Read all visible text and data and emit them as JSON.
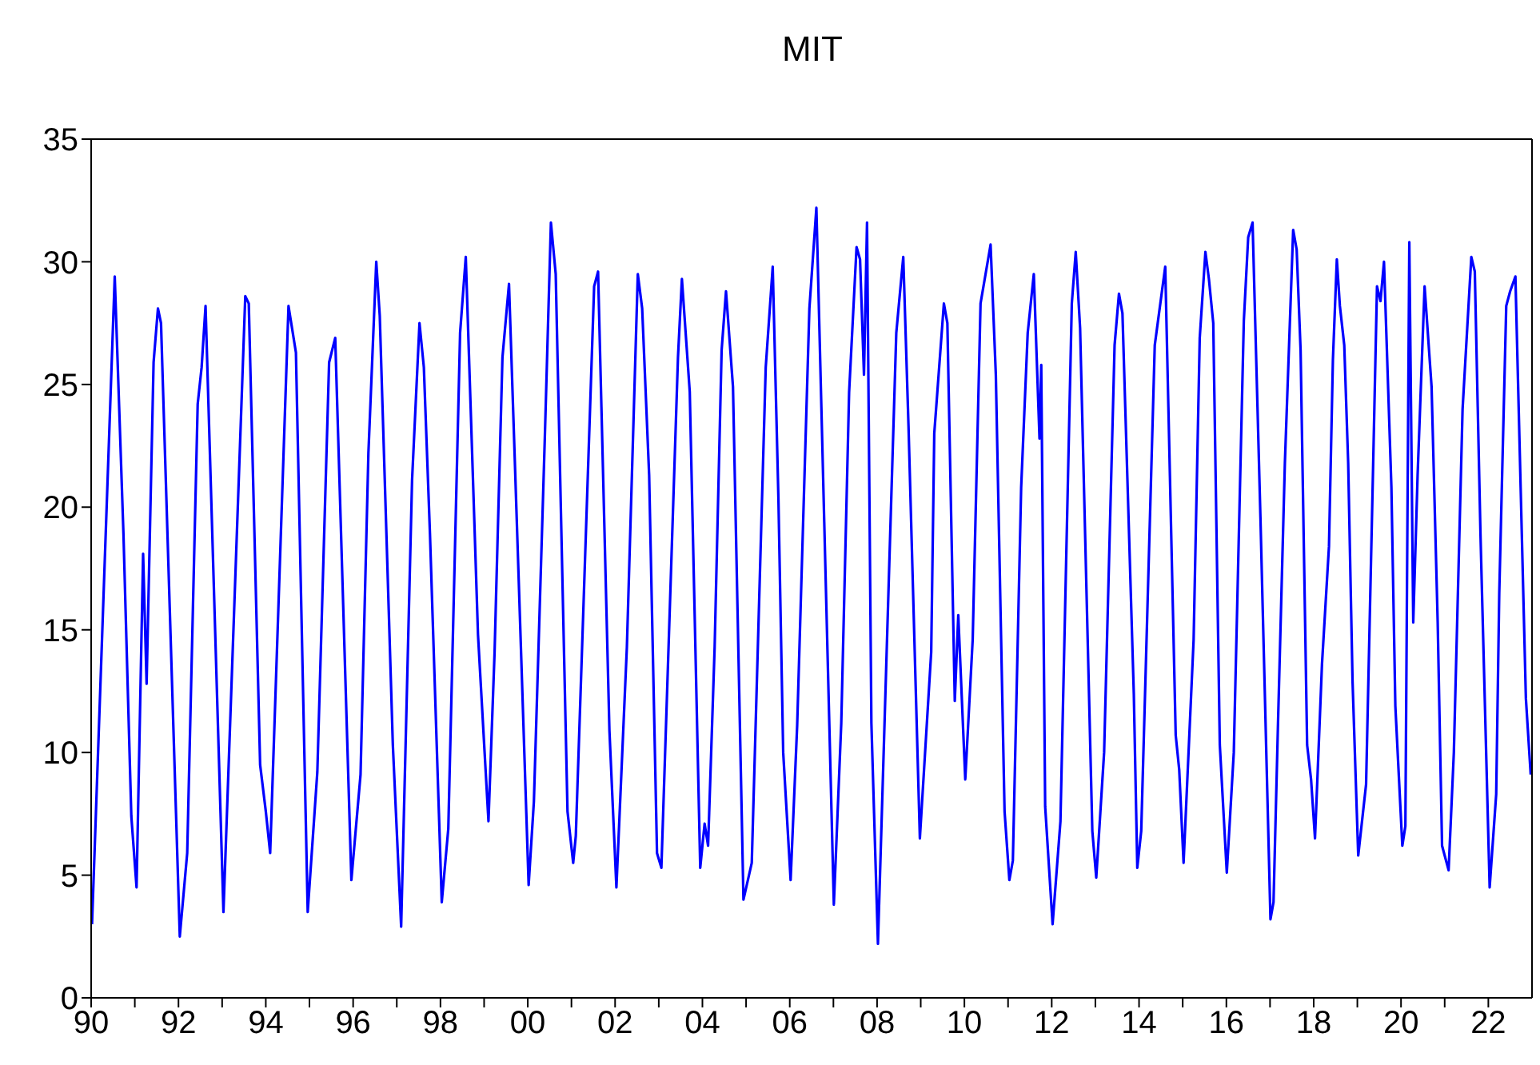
{
  "chart_data": {
    "type": "line",
    "title": "MIT",
    "x": [
      1990.02,
      1990.54,
      1990.74,
      1990.92,
      1991.04,
      1991.19,
      1991.27,
      1991.43,
      1991.53,
      1991.6,
      1992.03,
      1992.2,
      1992.44,
      1992.53,
      1992.62,
      1993.03,
      1993.53,
      1993.61,
      1993.87,
      1994.0,
      1994.1,
      1994.52,
      1994.69,
      1994.96,
      1995.18,
      1995.45,
      1995.59,
      1995.96,
      1996.17,
      1996.35,
      1996.53,
      1996.61,
      1996.91,
      1997.1,
      1997.35,
      1997.52,
      1997.62,
      1997.76,
      1998.03,
      1998.18,
      1998.45,
      1998.58,
      1998.86,
      1999.1,
      1999.24,
      1999.42,
      1999.57,
      1999.74,
      2000.02,
      2000.14,
      2000.39,
      2000.53,
      2000.64,
      2000.91,
      2001.04,
      2001.1,
      2001.52,
      2001.61,
      2001.87,
      2002.03,
      2002.27,
      2002.52,
      2002.62,
      2002.78,
      2002.96,
      2003.06,
      2003.44,
      2003.53,
      2003.71,
      2003.95,
      2004.05,
      2004.13,
      2004.28,
      2004.44,
      2004.54,
      2004.7,
      2004.94,
      2005.13,
      2005.45,
      2005.61,
      2005.74,
      2005.85,
      2006.02,
      2006.17,
      2006.45,
      2006.61,
      2006.79,
      2007.01,
      2007.18,
      2007.36,
      2007.53,
      2007.61,
      2007.7,
      2007.77,
      2007.87,
      2008.02,
      2008.28,
      2008.44,
      2008.6,
      2008.72,
      2008.98,
      2009.24,
      2009.31,
      2009.53,
      2009.61,
      2009.78,
      2009.86,
      2010.02,
      2010.19,
      2010.37,
      2010.6,
      2010.72,
      2010.92,
      2011.03,
      2011.11,
      2011.3,
      2011.45,
      2011.59,
      2011.72,
      2011.76,
      2011.85,
      2012.02,
      2012.2,
      2012.46,
      2012.55,
      2012.65,
      2012.93,
      2013.02,
      2013.2,
      2013.44,
      2013.54,
      2013.62,
      2013.88,
      2013.96,
      2014.05,
      2014.36,
      2014.6,
      2014.84,
      2014.92,
      2015.02,
      2015.25,
      2015.39,
      2015.52,
      2015.6,
      2015.7,
      2015.85,
      2016.01,
      2016.17,
      2016.4,
      2016.5,
      2016.6,
      2016.78,
      2017.01,
      2017.08,
      2017.18,
      2017.34,
      2017.53,
      2017.61,
      2017.7,
      2017.85,
      2017.94,
      2018.03,
      2018.19,
      2018.35,
      2018.44,
      2018.53,
      2018.6,
      2018.7,
      2018.79,
      2018.89,
      2019.02,
      2019.2,
      2019.36,
      2019.45,
      2019.53,
      2019.61,
      2019.78,
      2019.87,
      2020.03,
      2020.1,
      2020.19,
      2020.28,
      2020.38,
      2020.54,
      2020.7,
      2020.84,
      2020.94,
      2021.09,
      2021.21,
      2021.41,
      2021.61,
      2021.69,
      2021.82,
      2022.03,
      2022.18,
      2022.25,
      2022.41,
      2022.5,
      2022.62,
      2022.74,
      2022.86,
      2022.97
    ],
    "series": [
      {
        "color": "#0000ff",
        "values": [
          3.0,
          29.4,
          18.9,
          7.4,
          4.5,
          18.1,
          12.8,
          25.9,
          28.1,
          27.5,
          2.5,
          5.9,
          24.2,
          25.7,
          28.2,
          3.5,
          28.6,
          28.3,
          9.5,
          7.6,
          5.9,
          28.2,
          26.3,
          3.5,
          9.2,
          25.9,
          26.9,
          4.8,
          9.1,
          22.2,
          30.0,
          27.8,
          10.3,
          2.9,
          21.1,
          27.5,
          25.7,
          18.9,
          3.9,
          6.9,
          27.1,
          30.2,
          14.8,
          7.2,
          14.1,
          26.1,
          29.1,
          19.9,
          4.6,
          8.0,
          22.8,
          31.6,
          29.5,
          7.6,
          5.5,
          6.6,
          29.0,
          29.6,
          10.9,
          4.5,
          14.3,
          29.5,
          28.1,
          21.3,
          5.9,
          5.3,
          26.1,
          29.3,
          24.7,
          5.3,
          7.1,
          6.2,
          14.3,
          26.4,
          28.8,
          24.9,
          4.0,
          5.5,
          25.7,
          29.8,
          20.4,
          10.0,
          4.8,
          11.1,
          28.1,
          32.2,
          19.4,
          3.8,
          11.2,
          24.7,
          30.6,
          30.1,
          25.4,
          31.6,
          11.2,
          2.2,
          17.7,
          27.1,
          30.2,
          23.3,
          6.5,
          14.1,
          23.0,
          28.3,
          27.5,
          12.1,
          15.6,
          8.9,
          14.6,
          28.3,
          30.7,
          25.4,
          7.6,
          4.8,
          5.6,
          20.8,
          27.1,
          29.5,
          22.8,
          25.8,
          7.8,
          3.0,
          7.2,
          28.3,
          30.4,
          27.3,
          6.8,
          4.9,
          10.0,
          26.6,
          28.7,
          27.9,
          12.4,
          5.3,
          6.8,
          26.6,
          29.8,
          10.7,
          9.3,
          5.5,
          14.6,
          26.9,
          30.4,
          29.3,
          27.5,
          10.3,
          5.1,
          10.0,
          27.6,
          31.0,
          31.6,
          19.6,
          3.2,
          3.9,
          11.0,
          21.8,
          31.3,
          30.5,
          26.4,
          10.3,
          8.9,
          6.5,
          13.6,
          18.4,
          26.0,
          30.1,
          28.2,
          26.6,
          21.8,
          12.9,
          5.8,
          8.7,
          21.6,
          29.0,
          28.4,
          30.0,
          20.8,
          11.9,
          6.2,
          7.0,
          30.8,
          15.3,
          21.3,
          29.0,
          24.9,
          15.3,
          6.2,
          5.2,
          10.0,
          24.0,
          30.2,
          29.6,
          18.9,
          4.5,
          8.3,
          16.5,
          28.2,
          28.8,
          29.4,
          20.8,
          12.2,
          9.1
        ]
      }
    ],
    "xlim": [
      1990,
      2023
    ],
    "xticks": [
      {
        "value": 1990,
        "label": "90"
      },
      {
        "value": 1991,
        "label": null
      },
      {
        "value": 1992,
        "label": "92"
      },
      {
        "value": 1993,
        "label": null
      },
      {
        "value": 1994,
        "label": "94"
      },
      {
        "value": 1995,
        "label": null
      },
      {
        "value": 1996,
        "label": "96"
      },
      {
        "value": 1997,
        "label": null
      },
      {
        "value": 1998,
        "label": "98"
      },
      {
        "value": 1999,
        "label": null
      },
      {
        "value": 2000,
        "label": "00"
      },
      {
        "value": 2001,
        "label": null
      },
      {
        "value": 2002,
        "label": "02"
      },
      {
        "value": 2003,
        "label": null
      },
      {
        "value": 2004,
        "label": "04"
      },
      {
        "value": 2005,
        "label": null
      },
      {
        "value": 2006,
        "label": "06"
      },
      {
        "value": 2007,
        "label": null
      },
      {
        "value": 2008,
        "label": "08"
      },
      {
        "value": 2009,
        "label": null
      },
      {
        "value": 2010,
        "label": "10"
      },
      {
        "value": 2011,
        "label": null
      },
      {
        "value": 2012,
        "label": "12"
      },
      {
        "value": 2013,
        "label": null
      },
      {
        "value": 2014,
        "label": "14"
      },
      {
        "value": 2015,
        "label": null
      },
      {
        "value": 2016,
        "label": "16"
      },
      {
        "value": 2017,
        "label": null
      },
      {
        "value": 2018,
        "label": "18"
      },
      {
        "value": 2019,
        "label": null
      },
      {
        "value": 2020,
        "label": "20"
      },
      {
        "value": 2021,
        "label": null
      },
      {
        "value": 2022,
        "label": "22"
      }
    ],
    "ylim": [
      0,
      35
    ],
    "yticks": [
      0,
      5,
      10,
      15,
      20,
      25,
      30,
      35
    ]
  }
}
